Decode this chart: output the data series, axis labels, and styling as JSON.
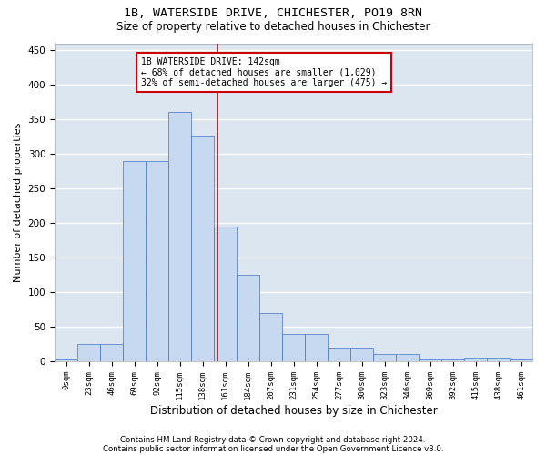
{
  "title1": "1B, WATERSIDE DRIVE, CHICHESTER, PO19 8RN",
  "title2": "Size of property relative to detached houses in Chichester",
  "xlabel": "Distribution of detached houses by size in Chichester",
  "ylabel": "Number of detached properties",
  "bar_labels": [
    "0sqm",
    "23sqm",
    "46sqm",
    "69sqm",
    "92sqm",
    "115sqm",
    "138sqm",
    "161sqm",
    "184sqm",
    "207sqm",
    "231sqm",
    "254sqm",
    "277sqm",
    "300sqm",
    "323sqm",
    "346sqm",
    "369sqm",
    "392sqm",
    "415sqm",
    "438sqm",
    "461sqm"
  ],
  "bar_values": [
    2,
    25,
    25,
    290,
    290,
    360,
    325,
    195,
    125,
    70,
    40,
    40,
    20,
    20,
    10,
    10,
    3,
    3,
    5,
    5,
    2
  ],
  "bar_color": "#c6d9f1",
  "bar_edge_color": "#4472c4",
  "bg_color": "#dce6f1",
  "grid_color": "#ffffff",
  "property_line_color": "#cc0000",
  "annotation_text": "1B WATERSIDE DRIVE: 142sqm\n← 68% of detached houses are smaller (1,029)\n32% of semi-detached houses are larger (475) →",
  "annotation_box_color": "#cc0000",
  "footer_line1": "Contains HM Land Registry data © Crown copyright and database right 2024.",
  "footer_line2": "Contains public sector information licensed under the Open Government Licence v3.0.",
  "ylim": [
    0,
    460
  ],
  "yticks": [
    0,
    50,
    100,
    150,
    200,
    250,
    300,
    350,
    400,
    450
  ]
}
